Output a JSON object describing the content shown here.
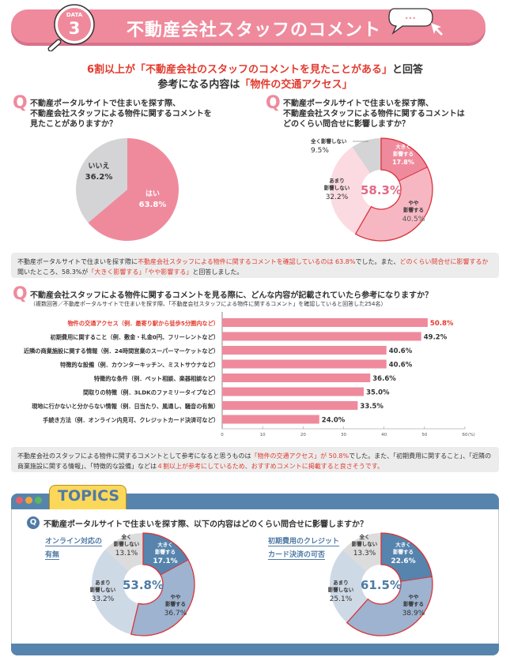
{
  "header": {
    "data_label": "DATA",
    "data_number": "3",
    "title": "不動産会社スタッフのコメント",
    "bubble_dots": "•••"
  },
  "headline": {
    "line1_red": "6割以上が「不動産会社のスタッフのコメントを見たことがある」",
    "line1_black": "と回答",
    "line2_black": "参考になる内容は",
    "line2_red": "「物件の交通アクセス」"
  },
  "q_mark": "Q",
  "q1": {
    "text": [
      "不動産ポータルサイトで住まいを探す際、",
      "不動産会社スタッフによる物件に関するコメントを",
      "見たことがありますか？"
    ]
  },
  "q2": {
    "text": [
      "不動産ポータルサイトで住まいを探す際、",
      "不動産会社スタッフによる物件に関するコメントは",
      "どのくらい問合せに影響しますか？"
    ]
  },
  "note1": {
    "p1": "不動産ポータルサイトで住まいを探す際に",
    "p2_red": "不動産会社スタッフによる物件に関するコメントを確認しているのは 63.8%",
    "p3": "でした。また、",
    "p4_red": "どのくらい問合せに影響するか",
    "p5": "聞いたところ、58.3%が",
    "p6_red": "「大きく影響する」「やや影響する」",
    "p7": "と回答しました。"
  },
  "q3": {
    "text": "不動産会社スタッフによる物件に関するコメントを見る際に、どんな内容が記載されていたら参考になりますか？",
    "sub": "（複数回答／不動産ポータルサイトで住まいを探す際、「不動産会社スタッフによる物件に関するコメント」を確認していると回答した254名）"
  },
  "note2": {
    "p1": "不動産会社のスタッフによる物件に関するコメントとして参考になると思うものは",
    "p2_red": "「物件の交通アクセス」が 50.8%",
    "p3": "でした。また、「初期費用に関すること」、「近隣の商業施設に関する情報」、「特徴的な設備」などは",
    "p4_red": "４割以上が参考にしているため、おすすめコメントに掲載すると良さそうです。"
  },
  "topics": {
    "label": "TOPICS",
    "question": "不動産ポータルサイトで住まいを探す際、以下の内容はどのくらい問合せに影響しますか？",
    "q_icon": "Q",
    "dots": [
      "#e8606a",
      "#f3a53a",
      "#5cb85c"
    ]
  },
  "colors": {
    "pink": "#ef8a9d",
    "red": "#e23a2e",
    "blue": "#5684ad",
    "gray": "#d4d4d6"
  },
  "chart_data": [
    {
      "type": "pie",
      "title": "不動産ポータルサイトで住まいを探す際、不動産会社スタッフによる物件に関するコメントを見たことがありますか？",
      "labels": [
        "はい",
        "いいえ"
      ],
      "values": [
        63.8,
        36.2
      ],
      "value_labels": [
        "63.8%",
        "36.2%"
      ],
      "colors": [
        "#ef8a9d",
        "#d4d4d6"
      ]
    },
    {
      "type": "pie",
      "subtype": "donut",
      "title": "不動産ポータルサイトで住まいを探す際、不動産会社スタッフによる物件に関するコメントはどのくらい問合せに影響しますか？",
      "labels": [
        "大きく影響する",
        "やや影響する",
        "あまり影響しない",
        "全く影響しない"
      ],
      "label_lines": [
        [
          "大きく",
          "影響する"
        ],
        [
          "やや",
          "影響する"
        ],
        [
          "あまり",
          "影響しない"
        ],
        [
          "全く影響しない"
        ]
      ],
      "values": [
        17.8,
        40.5,
        32.2,
        9.5
      ],
      "value_labels": [
        "17.8%",
        "40.5%",
        "32.2%",
        "9.5%"
      ],
      "colors": [
        "#ef8a9d",
        "#f6b7c3",
        "#fbdbe1",
        "#d4d4d6"
      ],
      "center_label": "58.3%"
    },
    {
      "type": "bar",
      "orientation": "horizontal",
      "categories": [
        "物件の交通アクセス（例．最寄り駅から徒歩5分圏内など）",
        "初期費用に関すること（例．敷金・礼金0円、フリーレントなど）",
        "近隣の商業施設に関する情報（例．24時間営業のスーパーマーケットなど）",
        "特徴的な設備（例．カウンターキッチン、ミストサウナなど）",
        "特徴的な条件（例．ペット相談、楽器相談など）",
        "間取りの特徴（例．3LDKのファミリータイプなど）",
        "現地に行かないと分からない情報（例．日当たり、風通し、騒音の有無）",
        "手続き方法（例．オンライン内見可、クレジットカード決済可など）"
      ],
      "values": [
        50.8,
        49.2,
        40.6,
        40.6,
        36.6,
        35.0,
        33.5,
        24.0
      ],
      "value_labels": [
        "50.8%",
        "49.2%",
        "40.6%",
        "40.6%",
        "36.6%",
        "35.0%",
        "33.5%",
        "24.0%"
      ],
      "highlight_index": 0,
      "xlim": [
        0,
        60
      ],
      "xticks": [
        "0",
        "10",
        "20",
        "30",
        "40",
        "50",
        "60"
      ],
      "xunit": "(%)",
      "bar_color": "#ef8a9d"
    },
    {
      "type": "pie",
      "subtype": "donut",
      "title": "オンライン対応の有無",
      "title_lines": [
        "オンライン対応の",
        "有無"
      ],
      "labels": [
        "大きく影響する",
        "やや影響する",
        "あまり影響しない",
        "全く影響しない"
      ],
      "label_lines": [
        [
          "大きく",
          "影響する"
        ],
        [
          "やや",
          "影響する"
        ],
        [
          "あまり",
          "影響しない"
        ],
        [
          "全く",
          "影響しない"
        ]
      ],
      "values": [
        17.1,
        36.7,
        33.2,
        13.1
      ],
      "value_labels": [
        "17.1%",
        "36.7%",
        "33.2%",
        "13.1%"
      ],
      "colors": [
        "#5684ad",
        "#9db3cf",
        "#ced9e6",
        "#dcdcdc"
      ],
      "center_label": "53.8%"
    },
    {
      "type": "pie",
      "subtype": "donut",
      "title": "初期費用のクレジットカード決済の可否",
      "title_lines": [
        "初期費用のクレジット",
        "カード決済の可否"
      ],
      "labels": [
        "大きく影響する",
        "やや影響する",
        "あまり影響しない",
        "全く影響しない"
      ],
      "label_lines": [
        [
          "大きく",
          "影響する"
        ],
        [
          "やや",
          "影響する"
        ],
        [
          "あまり",
          "影響しない"
        ],
        [
          "全く",
          "影響しない"
        ]
      ],
      "values": [
        22.6,
        38.9,
        25.1,
        13.3
      ],
      "value_labels": [
        "22.6%",
        "38.9%",
        "25.1%",
        "13.3%"
      ],
      "colors": [
        "#5684ad",
        "#9db3cf",
        "#ced9e6",
        "#dcdcdc"
      ],
      "center_label": "61.5%"
    }
  ]
}
